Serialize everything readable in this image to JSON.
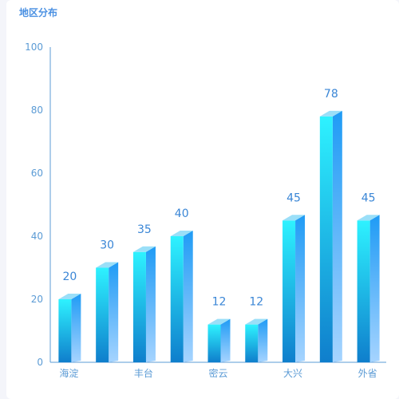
{
  "chart_data": {
    "type": "bar",
    "title": "地区分布",
    "categories": [
      "海淀",
      "",
      "丰台",
      "",
      "密云",
      "",
      "大兴",
      "",
      "外省"
    ],
    "values": [
      20,
      30,
      35,
      40,
      12,
      12,
      45,
      78,
      45
    ],
    "ylim": [
      0,
      100
    ],
    "yticks": [
      0,
      20,
      40,
      60,
      80,
      100
    ],
    "grid": false,
    "legend": "none",
    "colors": {
      "front_top": "#2ef2ff",
      "front_bottom": "#0f7ecc",
      "side_top": "#1f9bf5",
      "side_bottom": "#a6d4ff",
      "cap": "#9adff8",
      "axis": "#5b9bd5",
      "label": "#3a86d6"
    }
  }
}
